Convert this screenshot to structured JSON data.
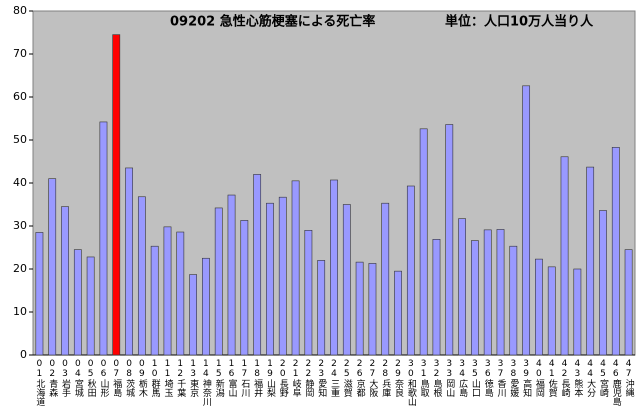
{
  "chart_data": {
    "type": "bar",
    "title": "09202 急性心筋梗塞による死亡率",
    "subtitle": "単位：人口10万人当り人",
    "categories": [
      "01北海道",
      "02青森",
      "03岩手",
      "04宮城",
      "05秋田",
      "06山形",
      "07福島",
      "08茨城",
      "09栃木",
      "10群馬",
      "11埼玉",
      "12千葉",
      "13東京",
      "14神奈川",
      "15新潟",
      "16富山",
      "17石川",
      "18福井",
      "19山梨",
      "20長野",
      "21岐阜",
      "22静岡",
      "23愛知",
      "24三重",
      "25滋賀",
      "26京都",
      "27大阪",
      "28兵庫",
      "29奈良",
      "30和歌山",
      "31鳥取",
      "32島根",
      "33岡山",
      "34広島",
      "35山口",
      "36徳島",
      "37香川",
      "38愛媛",
      "39高知",
      "40福岡",
      "41佐賀",
      "42長崎",
      "43熊本",
      "44大分",
      "45宮崎",
      "46鹿児島",
      "47沖縄"
    ],
    "values": [
      28.5,
      41,
      34.5,
      24.5,
      22.8,
      54.2,
      74.5,
      43.5,
      36.8,
      25.3,
      29.8,
      28.6,
      18.7,
      22.5,
      34.2,
      37.2,
      31.3,
      42,
      35.3,
      36.7,
      40.5,
      29,
      22,
      40.7,
      35,
      21.6,
      21.3,
      35.3,
      19.5,
      39.3,
      52.6,
      26.9,
      53.6,
      31.7,
      26.6,
      29.1,
      29.2,
      25.3,
      62.6,
      22.3,
      20.5,
      46.1,
      20,
      43.7,
      33.6,
      48.3,
      24.5
    ],
    "colors": [
      "#9999ff",
      "#9999ff",
      "#9999ff",
      "#9999ff",
      "#9999ff",
      "#9999ff",
      "#ff0000",
      "#9999ff",
      "#9999ff",
      "#9999ff",
      "#9999ff",
      "#9999ff",
      "#9999ff",
      "#9999ff",
      "#9999ff",
      "#9999ff",
      "#9999ff",
      "#9999ff",
      "#9999ff",
      "#9999ff",
      "#9999ff",
      "#9999ff",
      "#9999ff",
      "#9999ff",
      "#9999ff",
      "#9999ff",
      "#9999ff",
      "#9999ff",
      "#9999ff",
      "#9999ff",
      "#9999ff",
      "#9999ff",
      "#9999ff",
      "#9999ff",
      "#9999ff",
      "#9999ff",
      "#9999ff",
      "#9999ff",
      "#9999ff",
      "#9999ff",
      "#9999ff",
      "#9999ff",
      "#9999ff",
      "#9999ff",
      "#9999ff",
      "#9999ff",
      "#9999ff"
    ],
    "ylim": [
      0,
      80
    ],
    "yticks": [
      0,
      10,
      20,
      30,
      40,
      50,
      60,
      70,
      80
    ],
    "grid": false
  }
}
